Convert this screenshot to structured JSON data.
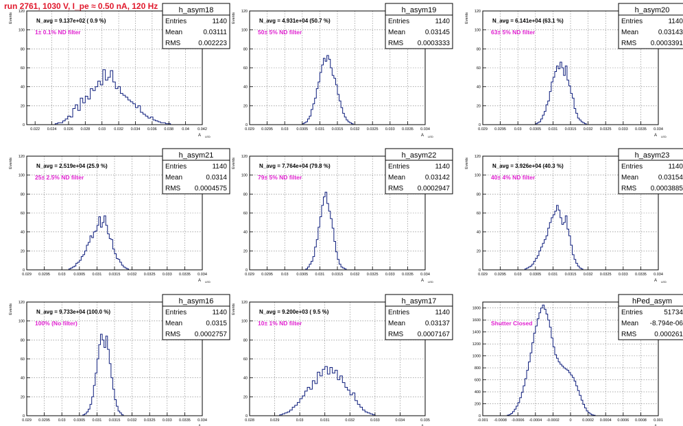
{
  "page": {
    "title": "run 2761,  1030 V, I_pe ≈ 0.50 nA, 120 Hz"
  },
  "chart_data": [
    {
      "type": "bar",
      "name": "h_asym18",
      "xlabel": "A_{LED}",
      "ylabel": "Events",
      "navg": "N_avg = 9.137e+02 ( 0.9 %)",
      "filter": "1± 0.1% ND filter",
      "stats": {
        "Entries": "1140",
        "Mean": "0.03111",
        "RMS": "0.002223"
      },
      "xlim": [
        0.021,
        0.042
      ],
      "ylim": [
        0,
        120
      ],
      "xticks": [
        0.022,
        0.024,
        0.026,
        0.028,
        0.03,
        0.032,
        0.034,
        0.036,
        0.038,
        0.04,
        0.042
      ],
      "xticklabels": [
        "0.022",
        "0.024",
        "0.026",
        "0.028",
        "0.03",
        "0.032",
        "0.034",
        "0.036",
        "0.038",
        "0.04",
        "0.042"
      ],
      "yticks": [
        0,
        20,
        40,
        60,
        80,
        100,
        120
      ],
      "bins": {
        "start": 0.0244,
        "width": 0.0003,
        "counts": [
          1,
          2,
          2,
          4,
          6,
          9,
          8,
          17,
          21,
          15,
          28,
          23,
          30,
          27,
          38,
          36,
          40,
          46,
          42,
          58,
          47,
          50,
          57,
          45,
          38,
          40,
          33,
          31,
          29,
          26,
          24,
          22,
          18,
          20,
          13,
          11,
          9,
          7,
          8,
          5,
          4,
          3,
          2,
          2,
          1,
          1
        ]
      }
    },
    {
      "type": "bar",
      "name": "h_asym19",
      "xlabel": "A_{LED}",
      "ylabel": "Events",
      "navg": "N_avg = 4.931e+04 (50.7 %)",
      "filter": "50± 5% ND filter",
      "stats": {
        "Entries": "1140",
        "Mean": "0.03145",
        "RMS": "0.0003333"
      },
      "xlim": [
        0.029,
        0.034
      ],
      "ylim": [
        0,
        120
      ],
      "xticks": [
        0.029,
        0.0295,
        0.03,
        0.0305,
        0.031,
        0.0315,
        0.032,
        0.0325,
        0.033,
        0.0335,
        0.034
      ],
      "xticklabels": [
        "0.029",
        "0.0295",
        "0.03",
        "0.0305",
        "0.031",
        "0.0315",
        "0.032",
        "0.0325",
        "0.033",
        "0.0335",
        "0.034"
      ],
      "yticks": [
        0,
        20,
        40,
        60,
        80,
        100,
        120
      ],
      "bins": {
        "start": 0.0305,
        "width": 5e-05,
        "counts": [
          1,
          2,
          3,
          6,
          9,
          16,
          22,
          28,
          38,
          45,
          55,
          63,
          70,
          67,
          73,
          69,
          60,
          52,
          49,
          42,
          32,
          25,
          18,
          12,
          8,
          5,
          3,
          2,
          1
        ]
      }
    },
    {
      "type": "bar",
      "name": "h_asym20",
      "xlabel": "A_{LED}",
      "ylabel": "Events",
      "navg": "N_avg = 6.141e+04 (63.1 %)",
      "filter": "63± 5% ND filter",
      "stats": {
        "Entries": "1140",
        "Mean": "0.03143",
        "RMS": "0.0003391"
      },
      "xlim": [
        0.029,
        0.034
      ],
      "ylim": [
        0,
        120
      ],
      "xticks": [
        0.029,
        0.0295,
        0.03,
        0.0305,
        0.031,
        0.0315,
        0.032,
        0.0325,
        0.033,
        0.0335,
        0.034
      ],
      "xticklabels": [
        "0.029",
        "0.0295",
        "0.03",
        "0.0305",
        "0.031",
        "0.0315",
        "0.032",
        "0.0325",
        "0.033",
        "0.0335",
        "0.034"
      ],
      "yticks": [
        0,
        20,
        40,
        60,
        80,
        100,
        120
      ],
      "bins": {
        "start": 0.0305,
        "width": 5e-05,
        "counts": [
          1,
          2,
          3,
          6,
          10,
          14,
          21,
          25,
          35,
          45,
          50,
          56,
          62,
          59,
          66,
          60,
          52,
          62,
          47,
          41,
          33,
          28,
          17,
          12,
          7,
          5,
          3,
          2,
          1
        ]
      }
    },
    {
      "type": "bar",
      "name": "h_asym21",
      "xlabel": "A_{LED}",
      "ylabel": "Events",
      "navg": "N_avg = 2.519e+04 (25.9 %)",
      "filter": "25± 2.5% ND filter",
      "stats": {
        "Entries": "1140",
        "Mean": "0.0314",
        "RMS": "0.0004575"
      },
      "xlim": [
        0.029,
        0.034
      ],
      "ylim": [
        0,
        120
      ],
      "xticks": [
        0.029,
        0.0295,
        0.03,
        0.0305,
        0.031,
        0.0315,
        0.032,
        0.0325,
        0.033,
        0.0335,
        0.034
      ],
      "xticklabels": [
        "0.029",
        "0.0295",
        "0.03",
        "0.0305",
        "0.031",
        "0.0315",
        "0.032",
        "0.0325",
        "0.033",
        "0.0335",
        "0.034"
      ],
      "yticks": [
        0,
        20,
        40,
        60,
        80,
        100,
        120
      ],
      "bins": {
        "start": 0.0302,
        "width": 5e-05,
        "counts": [
          1,
          2,
          3,
          4,
          7,
          8,
          10,
          14,
          16,
          20,
          26,
          29,
          36,
          34,
          40,
          41,
          47,
          56,
          45,
          50,
          57,
          47,
          38,
          33,
          32,
          22,
          17,
          12,
          11,
          8,
          5,
          3,
          2,
          1
        ]
      }
    },
    {
      "type": "bar",
      "name": "h_asym22",
      "xlabel": "A_{LED}",
      "ylabel": "Events",
      "navg": "N_avg = 7.764e+04 (79.8 %)",
      "filter": "79± 5% ND filter",
      "stats": {
        "Entries": "1140",
        "Mean": "0.03142",
        "RMS": "0.0002947"
      },
      "xlim": [
        0.029,
        0.034
      ],
      "ylim": [
        0,
        120
      ],
      "xticks": [
        0.029,
        0.0295,
        0.03,
        0.0305,
        0.031,
        0.0315,
        0.032,
        0.0325,
        0.033,
        0.0335,
        0.034
      ],
      "xticklabels": [
        "0.029",
        "0.0295",
        "0.03",
        "0.0305",
        "0.031",
        "0.0315",
        "0.032",
        "0.0325",
        "0.033",
        "0.0335",
        "0.034"
      ],
      "yticks": [
        0,
        20,
        40,
        60,
        80,
        100,
        120
      ],
      "bins": {
        "start": 0.0306,
        "width": 5e-05,
        "counts": [
          1,
          3,
          6,
          9,
          14,
          24,
          32,
          45,
          56,
          68,
          77,
          82,
          70,
          62,
          54,
          44,
          30,
          19,
          11,
          6,
          3,
          2,
          1
        ]
      }
    },
    {
      "type": "bar",
      "name": "h_asym23",
      "xlabel": "A_{LED}",
      "ylabel": "Events",
      "navg": "N_avg = 3.926e+04 (40.3 %)",
      "filter": "40± 4% ND filter",
      "stats": {
        "Entries": "1140",
        "Mean": "0.03154",
        "RMS": "0.0003885"
      },
      "xlim": [
        0.029,
        0.034
      ],
      "ylim": [
        0,
        120
      ],
      "xticks": [
        0.029,
        0.0295,
        0.03,
        0.0305,
        0.031,
        0.0315,
        0.032,
        0.0325,
        0.033,
        0.0335,
        0.034
      ],
      "xticklabels": [
        "0.029",
        "0.0295",
        "0.03",
        "0.0305",
        "0.031",
        "0.0315",
        "0.032",
        "0.0325",
        "0.033",
        "0.0335",
        "0.034"
      ],
      "yticks": [
        0,
        20,
        40,
        60,
        80,
        100,
        120
      ],
      "bins": {
        "start": 0.0302,
        "width": 5e-05,
        "counts": [
          1,
          2,
          3,
          4,
          6,
          9,
          12,
          15,
          20,
          24,
          28,
          32,
          36,
          44,
          50,
          55,
          58,
          62,
          68,
          63,
          55,
          48,
          50,
          57,
          43,
          36,
          26,
          16,
          11,
          7,
          4,
          2,
          1
        ]
      }
    },
    {
      "type": "bar",
      "name": "h_asym16",
      "xlabel": "A_{LED}",
      "ylabel": "Events",
      "navg": "N_avg = 9.733e+04 (100.0 %)",
      "filter": "100% (No filter)",
      "stats": {
        "Entries": "1140",
        "Mean": "0.0315",
        "RMS": "0.0002757"
      },
      "xlim": [
        0.029,
        0.034
      ],
      "ylim": [
        0,
        120
      ],
      "xticks": [
        0.029,
        0.0295,
        0.03,
        0.0305,
        0.031,
        0.0315,
        0.032,
        0.0325,
        0.033,
        0.0335,
        0.034
      ],
      "xticklabels": [
        "0.029",
        "0.0295",
        "0.03",
        "0.0305",
        "0.031",
        "0.0315",
        "0.032",
        "0.0325",
        "0.033",
        "0.0335",
        "0.034"
      ],
      "yticks": [
        0,
        20,
        40,
        60,
        80,
        100,
        120
      ],
      "bins": {
        "start": 0.0306,
        "width": 5e-05,
        "counts": [
          1,
          2,
          4,
          7,
          12,
          20,
          32,
          45,
          60,
          75,
          86,
          80,
          72,
          84,
          70,
          55,
          40,
          28,
          17,
          10,
          5,
          3,
          1
        ]
      }
    },
    {
      "type": "bar",
      "name": "h_asym17",
      "xlabel": "A_{LED}",
      "ylabel": "Events",
      "navg": "N_avg = 9.200e+03 ( 9.5 %)",
      "filter": "10± 1% ND filter",
      "stats": {
        "Entries": "1140",
        "Mean": "0.03137",
        "RMS": "0.0007167"
      },
      "xlim": [
        0.028,
        0.035
      ],
      "ylim": [
        0,
        120
      ],
      "xticks": [
        0.028,
        0.029,
        0.03,
        0.031,
        0.032,
        0.033,
        0.034,
        0.035
      ],
      "xticklabels": [
        "0.028",
        "0.029",
        "0.03",
        "0.031",
        "0.032",
        "0.033",
        "0.034",
        "0.035"
      ],
      "yticks": [
        0,
        20,
        40,
        60,
        80,
        100,
        120
      ],
      "bins": {
        "start": 0.0292,
        "width": 0.0001,
        "counts": [
          1,
          2,
          3,
          4,
          6,
          9,
          11,
          14,
          18,
          21,
          26,
          30,
          28,
          37,
          34,
          46,
          42,
          49,
          52,
          44,
          51,
          45,
          48,
          38,
          42,
          35,
          30,
          27,
          22,
          24,
          16,
          12,
          9,
          6,
          4,
          3,
          2,
          1
        ]
      }
    },
    {
      "type": "bar",
      "name": "hPed_asym",
      "xlabel": "A_{LED}",
      "ylabel": "",
      "navg": "",
      "filter": "Shutter Closed",
      "stats": {
        "Entries": "51734",
        "Mean": "-8.794e-06",
        "RMS": "0.000261"
      },
      "xlim": [
        -0.001,
        0.001
      ],
      "ylim": [
        0,
        1900
      ],
      "xticks": [
        -0.001,
        -0.0008,
        -0.0006,
        -0.0004,
        -0.0002,
        0,
        0.0002,
        0.0004,
        0.0006,
        0.0008,
        0.001
      ],
      "xticklabels": [
        "-0.001",
        "-0.0008",
        "-0.0006",
        "-0.0004",
        "-0.0002",
        "0",
        "0.0002",
        "0.0004",
        "0.0006",
        "0.0008",
        "0.001"
      ],
      "yticks": [
        0,
        200,
        400,
        600,
        800,
        1000,
        1200,
        1400,
        1600,
        1800
      ],
      "bins": {
        "start": -0.00072,
        "width": 2e-05,
        "counts": [
          10,
          20,
          40,
          70,
          110,
          160,
          220,
          300,
          390,
          500,
          620,
          760,
          900,
          1050,
          1220,
          1380,
          1500,
          1620,
          1720,
          1800,
          1850,
          1780,
          1700,
          1600,
          1480,
          1300,
          1150,
          1020,
          960,
          900,
          860,
          830,
          800,
          780,
          760,
          720,
          680,
          640,
          580,
          500,
          420,
          340,
          260,
          190,
          130,
          80,
          50,
          30,
          15,
          8
        ]
      }
    }
  ]
}
